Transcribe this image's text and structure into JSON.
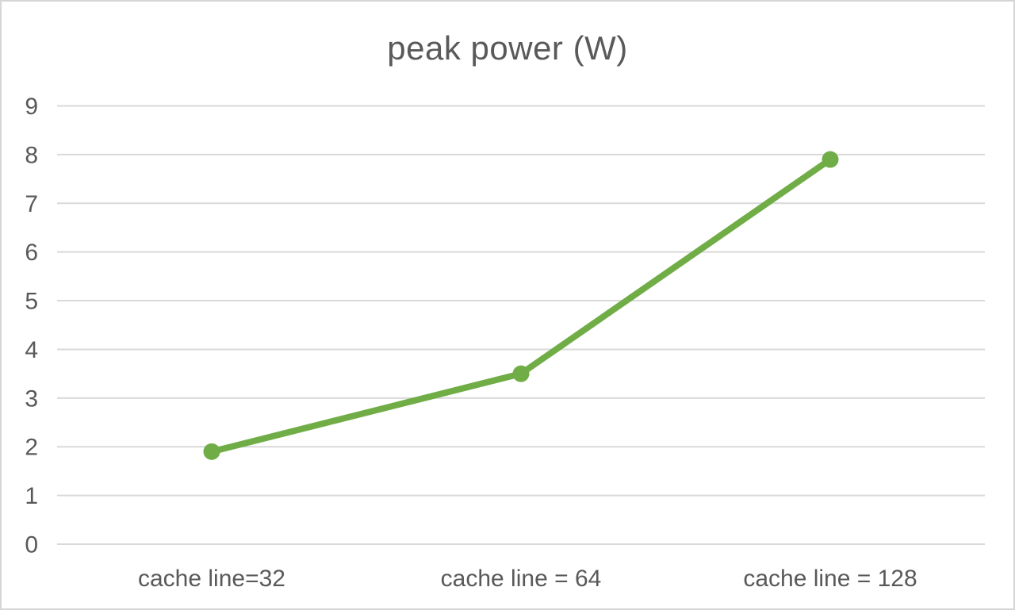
{
  "colors": {
    "accent_green": "#70AD47",
    "gridline": "#D9D9D9",
    "text": "#595959",
    "frame_border": "#D6D6D6",
    "background": "#FFFFFF"
  },
  "chart_data": {
    "type": "line",
    "title": "peak power (W)",
    "categories": [
      "cache line=32",
      "cache line = 64",
      "cache line = 128"
    ],
    "series": [
      {
        "name": "peak power (W)",
        "values": [
          1.9,
          3.5,
          7.9
        ],
        "color": "#70AD47",
        "marker": "circle"
      }
    ],
    "xlabel": "",
    "ylabel": "",
    "ylim": [
      0,
      9
    ],
    "yticks": [
      0,
      1,
      2,
      3,
      4,
      5,
      6,
      7,
      8,
      9
    ],
    "grid": "horizontal",
    "legend": "none"
  }
}
